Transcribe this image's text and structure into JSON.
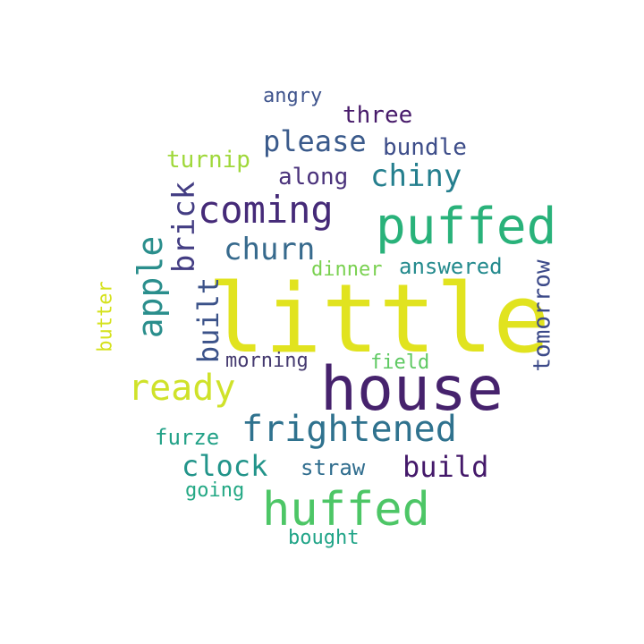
{
  "words": [
    {
      "text": "little",
      "color": "#e1e31f"
    },
    {
      "text": "house",
      "color": "#46226d"
    },
    {
      "text": "puffed",
      "color": "#29b27a"
    },
    {
      "text": "huffed",
      "color": "#4dc666"
    },
    {
      "text": "frightened",
      "color": "#2f728e"
    },
    {
      "text": "coming",
      "color": "#452a78"
    },
    {
      "text": "ready",
      "color": "#cfe22a"
    },
    {
      "text": "apple",
      "color": "#2a8e8c"
    },
    {
      "text": "brick",
      "color": "#433d83"
    },
    {
      "text": "built",
      "color": "#3b5289"
    },
    {
      "text": "build",
      "color": "#44196a"
    },
    {
      "text": "clock",
      "color": "#22948a"
    },
    {
      "text": "please",
      "color": "#3a5a8b"
    },
    {
      "text": "chiny",
      "color": "#257f8e"
    },
    {
      "text": "churn",
      "color": "#376a8d"
    },
    {
      "text": "straw",
      "color": "#306d8e"
    },
    {
      "text": "three",
      "color": "#471a6a"
    },
    {
      "text": "bundle",
      "color": "#3d4d89"
    },
    {
      "text": "along",
      "color": "#4a327b"
    },
    {
      "text": "turnip",
      "color": "#9fd83a"
    },
    {
      "text": "answered",
      "color": "#238a8d"
    },
    {
      "text": "dinner",
      "color": "#7ad151"
    },
    {
      "text": "tomorrow",
      "color": "#3c4a89"
    },
    {
      "text": "morning",
      "color": "#44396f"
    },
    {
      "text": "field",
      "color": "#5ec962"
    },
    {
      "text": "furze",
      "color": "#22a187"
    },
    {
      "text": "going",
      "color": "#23a884"
    },
    {
      "text": "bought",
      "color": "#20a487"
    },
    {
      "text": "angry",
      "color": "#3e538c"
    },
    {
      "text": "butter",
      "color": "#d5e21e"
    }
  ]
}
